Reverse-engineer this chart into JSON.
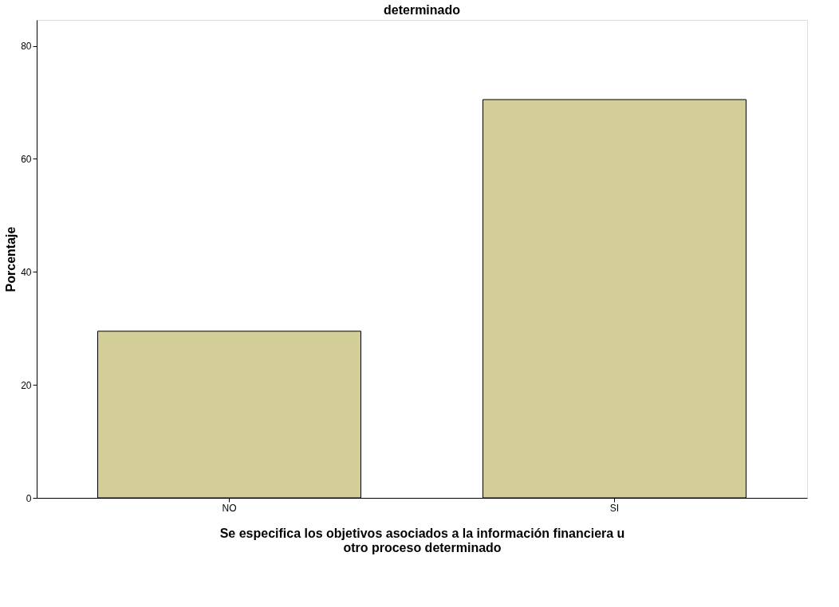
{
  "chart_data": {
    "type": "bar",
    "title": "determinado",
    "xlabel": "Se especifica los objetivos asociados a la información financiera u otro proceso determinado",
    "ylabel": "Porcentaje",
    "categories": [
      "NO",
      "SI"
    ],
    "series": [
      {
        "color": "#d3ce98",
        "values": [
          29.5,
          70.5
        ]
      }
    ],
    "ylim": [
      0,
      84.6
    ],
    "yticks": [
      0,
      20,
      40,
      60,
      80
    ],
    "grid": false,
    "legend": false
  }
}
